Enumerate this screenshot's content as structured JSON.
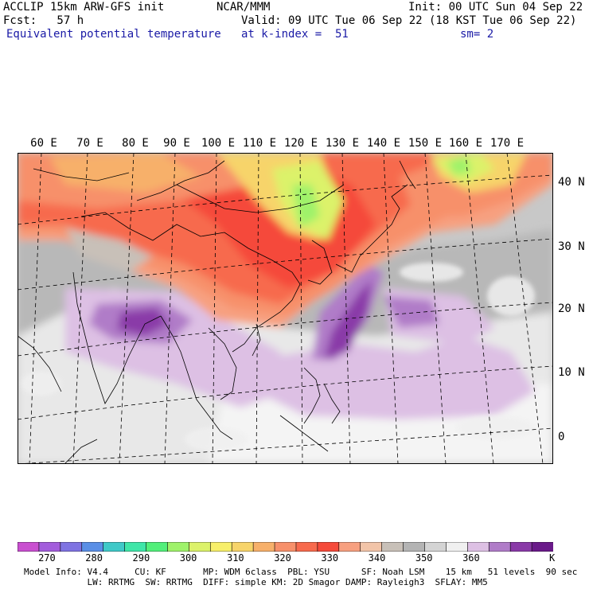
{
  "header": {
    "line1_left": "ACCLIP 15km ARW-GFS init",
    "line1_center": "NCAR/MMM",
    "line1_right": "Init: 00 UTC Sun 04 Sep 22",
    "line2_left": "Fcst:   57 h",
    "line2_right": "Valid: 09 UTC Tue 06 Sep 22 (18 KST Tue 06 Sep 22)",
    "line3_left": "Equivalent potential temperature",
    "line3_mid": "at k-index =  51",
    "line3_right": "sm= 2"
  },
  "map": {
    "longitude_labels": [
      "60 E",
      "70 E",
      "80 E",
      "90 E",
      "100 E",
      "110 E",
      "120 E",
      "130 E",
      "140 E",
      "150 E",
      "160 E",
      "170 E"
    ],
    "latitude_labels": [
      "40 N",
      "30 N",
      "20 N",
      "10 N",
      "0"
    ]
  },
  "colorbar": {
    "unit": "K",
    "ticks": [
      "270",
      "280",
      "290",
      "300",
      "310",
      "320",
      "330",
      "340",
      "350",
      "360"
    ],
    "colors": [
      "#c94fd0",
      "#a35ddc",
      "#7f73e2",
      "#5a8fe6",
      "#3fc9c8",
      "#3fe6a8",
      "#52ef7a",
      "#9ff26a",
      "#dcf26a",
      "#f7ef6a",
      "#f7d46a",
      "#f7b06a",
      "#f7906a",
      "#f76a4d",
      "#f54a3a",
      "#f7a080",
      "#f2c4a8",
      "#c8c0b8",
      "#b4b4b4",
      "#d4d4d4",
      "#f0f0f0",
      "#ddc0e4",
      "#b07cc8",
      "#8a3aa8",
      "#6a1a8a"
    ]
  },
  "model_info": {
    "line1": "Model Info: V4.4     CU: KF       MP: WDM 6class  PBL: YSU      SF: Noah LSM    15 km   51 levels  90 sec",
    "line2": "            LW: RRTMG  SW: RRTMG  DIFF: simple KM: 2D Smagor DAMP: Rayleigh3  SFLAY: MM5"
  }
}
